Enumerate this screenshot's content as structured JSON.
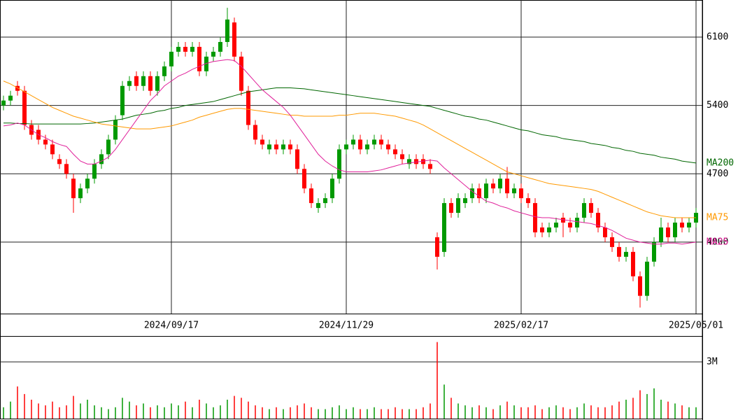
{
  "chart_data": {
    "type": "candlestick",
    "categories": [
      null,
      null,
      null,
      null,
      null,
      null,
      null,
      null,
      null,
      null,
      null,
      null,
      null,
      null,
      null,
      null,
      null,
      null,
      null,
      null,
      null,
      null,
      null,
      null,
      "2024/09/17",
      null,
      null,
      null,
      null,
      null,
      null,
      null,
      null,
      null,
      null,
      null,
      null,
      null,
      null,
      null,
      null,
      null,
      null,
      null,
      null,
      null,
      null,
      null,
      null,
      "2024/11/29",
      null,
      null,
      null,
      null,
      null,
      null,
      null,
      null,
      null,
      null,
      null,
      null,
      null,
      null,
      null,
      null,
      null,
      null,
      null,
      null,
      null,
      null,
      null,
      null,
      "2025/02/17",
      null,
      null,
      null,
      null,
      null,
      null,
      null,
      null,
      null,
      null,
      null,
      null,
      null,
      null,
      null,
      null,
      null,
      null,
      null,
      null,
      null,
      null,
      null,
      null,
      "2025/05/01"
    ],
    "open": [
      5400,
      5450,
      5600,
      5550,
      5200,
      5150,
      5050,
      5000,
      4850,
      4800,
      4650,
      4450,
      4550,
      4650,
      4800,
      4900,
      5050,
      5300,
      5600,
      5700,
      5600,
      5700,
      5550,
      5700,
      5800,
      5950,
      6000,
      5950,
      6000,
      5750,
      5900,
      5950,
      6050,
      6250,
      5900,
      5550,
      5200,
      5050,
      4950,
      5000,
      4950,
      5000,
      4950,
      4750,
      4550,
      4350,
      4400,
      4450,
      4650,
      4950,
      5000,
      5050,
      4950,
      5000,
      5050,
      5000,
      4950,
      4900,
      4800,
      4850,
      4850,
      4800,
      4050,
      3900,
      4400,
      4300,
      4400,
      4450,
      4550,
      4450,
      4600,
      4550,
      4650,
      4500,
      4550,
      4450,
      4400,
      4150,
      4100,
      4150,
      4250,
      4200,
      4150,
      4250,
      4400,
      4300,
      4150,
      4050,
      3950,
      3850,
      3900,
      3650,
      3450,
      3800,
      4000,
      4150,
      4050,
      4200,
      4150,
      4200
    ],
    "high": [
      5500,
      5550,
      5650,
      5600,
      5250,
      5200,
      5100,
      5050,
      4900,
      4850,
      4700,
      4600,
      4700,
      4850,
      4950,
      5100,
      5300,
      5650,
      5700,
      5750,
      5750,
      5750,
      5750,
      5850,
      6000,
      6050,
      6050,
      6050,
      6050,
      5950,
      6000,
      6100,
      6400,
      6300,
      5950,
      5600,
      5250,
      5100,
      5050,
      5050,
      5050,
      5050,
      5000,
      4800,
      4600,
      4450,
      4500,
      4700,
      5000,
      5050,
      5100,
      5100,
      5050,
      5100,
      5100,
      5050,
      5000,
      4950,
      4900,
      4900,
      4900,
      4850,
      4100,
      4450,
      4450,
      4500,
      4500,
      4600,
      4600,
      4650,
      4650,
      4700,
      4770,
      4600,
      4600,
      4500,
      4450,
      4200,
      4200,
      4250,
      4300,
      4250,
      4300,
      4450,
      4450,
      4350,
      4200,
      4100,
      4000,
      3950,
      3950,
      3700,
      3850,
      4050,
      4250,
      4200,
      4250,
      4250,
      4250,
      4350
    ],
    "low": [
      5350,
      5400,
      5500,
      5150,
      5050,
      5000,
      4950,
      4850,
      4750,
      4650,
      4300,
      4400,
      4500,
      4600,
      4750,
      4850,
      5000,
      5250,
      5550,
      5550,
      5550,
      5500,
      5500,
      5650,
      5750,
      5900,
      5900,
      5900,
      5700,
      5700,
      5850,
      5900,
      6000,
      5850,
      5500,
      5150,
      5000,
      4950,
      4900,
      4900,
      4900,
      4900,
      4700,
      4500,
      4350,
      4300,
      4350,
      4400,
      4600,
      4900,
      4950,
      4900,
      4900,
      4950,
      4950,
      4900,
      4850,
      4800,
      4750,
      4750,
      4750,
      4700,
      3720,
      3850,
      4250,
      4250,
      4350,
      4400,
      4400,
      4400,
      4500,
      4500,
      4450,
      4450,
      4400,
      4350,
      4050,
      4050,
      4050,
      4100,
      4050,
      4100,
      4100,
      4200,
      4250,
      4100,
      4000,
      3900,
      3800,
      3800,
      3600,
      3330,
      3400,
      3750,
      3950,
      4000,
      4000,
      4100,
      4100,
      4150
    ],
    "close": [
      5450,
      5500,
      5550,
      5200,
      5100,
      5050,
      5000,
      4900,
      4800,
      4700,
      4450,
      4550,
      4650,
      4800,
      4900,
      5050,
      5250,
      5600,
      5650,
      5600,
      5700,
      5550,
      5700,
      5800,
      5950,
      6000,
      5950,
      6000,
      5750,
      5900,
      5950,
      6050,
      6280,
      5900,
      5550,
      5200,
      5050,
      5000,
      5000,
      4950,
      5000,
      4950,
      4750,
      4550,
      4400,
      4400,
      4450,
      4650,
      4950,
      5000,
      5050,
      4950,
      5000,
      5050,
      5000,
      4950,
      4900,
      4850,
      4850,
      4800,
      4800,
      4750,
      3850,
      4400,
      4300,
      4450,
      4450,
      4550,
      4450,
      4600,
      4550,
      4650,
      4500,
      4550,
      4450,
      4400,
      4100,
      4100,
      4150,
      4200,
      4200,
      4150,
      4250,
      4400,
      4300,
      4150,
      4050,
      3950,
      3850,
      3900,
      3650,
      3450,
      3800,
      4000,
      4150,
      4050,
      4200,
      4150,
      4200,
      4300
    ],
    "up_color": "#009900",
    "down_color": "#ff0000",
    "series": [
      {
        "name": "MA200",
        "color": "#006600",
        "values": [
          5220,
          5220,
          5215,
          5215,
          5210,
          5210,
          5210,
          5210,
          5210,
          5210,
          5210,
          5210,
          5215,
          5220,
          5230,
          5240,
          5250,
          5260,
          5280,
          5300,
          5310,
          5320,
          5340,
          5350,
          5370,
          5380,
          5400,
          5410,
          5420,
          5430,
          5440,
          5460,
          5480,
          5500,
          5520,
          5540,
          5550,
          5560,
          5570,
          5580,
          5580,
          5580,
          5575,
          5570,
          5560,
          5550,
          5540,
          5530,
          5520,
          5510,
          5500,
          5490,
          5480,
          5470,
          5460,
          5450,
          5440,
          5430,
          5420,
          5410,
          5400,
          5390,
          5370,
          5350,
          5330,
          5310,
          5290,
          5280,
          5260,
          5250,
          5230,
          5210,
          5190,
          5170,
          5150,
          5140,
          5120,
          5100,
          5090,
          5080,
          5060,
          5050,
          5040,
          5030,
          5010,
          5000,
          4990,
          4970,
          4960,
          4940,
          4930,
          4910,
          4900,
          4890,
          4870,
          4860,
          4850,
          4830,
          4820,
          4810
        ]
      },
      {
        "name": "MA75",
        "color": "#ff9900",
        "values": [
          5650,
          5620,
          5580,
          5540,
          5500,
          5460,
          5420,
          5380,
          5350,
          5320,
          5290,
          5270,
          5250,
          5230,
          5210,
          5200,
          5190,
          5180,
          5170,
          5160,
          5160,
          5160,
          5170,
          5180,
          5190,
          5210,
          5230,
          5250,
          5280,
          5300,
          5320,
          5340,
          5360,
          5370,
          5370,
          5360,
          5350,
          5340,
          5330,
          5320,
          5310,
          5300,
          5300,
          5290,
          5290,
          5290,
          5290,
          5290,
          5300,
          5300,
          5310,
          5320,
          5320,
          5320,
          5310,
          5300,
          5290,
          5270,
          5250,
          5230,
          5200,
          5160,
          5120,
          5080,
          5040,
          5000,
          4960,
          4920,
          4880,
          4840,
          4800,
          4760,
          4720,
          4700,
          4680,
          4660,
          4640,
          4620,
          4600,
          4590,
          4580,
          4570,
          4560,
          4550,
          4540,
          4520,
          4490,
          4460,
          4430,
          4400,
          4370,
          4340,
          4310,
          4290,
          4270,
          4260,
          4250,
          4250,
          4250,
          4250
        ]
      },
      {
        "name": "MA25",
        "color": "#e0209a",
        "values": [
          5190,
          5200,
          5220,
          5200,
          5150,
          5100,
          5070,
          5030,
          5000,
          4980,
          4900,
          4830,
          4800,
          4800,
          4830,
          4870,
          4950,
          5050,
          5150,
          5250,
          5350,
          5450,
          5520,
          5600,
          5650,
          5700,
          5730,
          5770,
          5800,
          5830,
          5850,
          5860,
          5870,
          5860,
          5800,
          5720,
          5640,
          5560,
          5500,
          5440,
          5380,
          5300,
          5200,
          5100,
          5000,
          4900,
          4830,
          4780,
          4740,
          4720,
          4720,
          4720,
          4720,
          4730,
          4740,
          4760,
          4780,
          4800,
          4810,
          4820,
          4830,
          4840,
          4830,
          4760,
          4700,
          4640,
          4580,
          4520,
          4470,
          4420,
          4400,
          4370,
          4350,
          4320,
          4300,
          4280,
          4260,
          4250,
          4250,
          4240,
          4230,
          4220,
          4210,
          4200,
          4190,
          4170,
          4150,
          4120,
          4080,
          4040,
          4020,
          4000,
          3990,
          3980,
          3980,
          3990,
          3990,
          3980,
          3990,
          4000
        ]
      }
    ],
    "ylim": [
      3268,
      6480
    ],
    "yticks": [
      4000,
      4700,
      5400,
      6100
    ],
    "grid": true,
    "volume": {
      "values": [
        600000,
        900000,
        1700000,
        1300000,
        1000000,
        800000,
        700000,
        900000,
        600000,
        700000,
        1200000,
        800000,
        1000000,
        700000,
        600000,
        500000,
        600000,
        1100000,
        900000,
        700000,
        800000,
        600000,
        700000,
        600000,
        800000,
        700000,
        900000,
        600000,
        1000000,
        800000,
        600000,
        700000,
        1000000,
        1200000,
        1100000,
        900000,
        700000,
        600000,
        500000,
        600000,
        500000,
        600000,
        700000,
        800000,
        600000,
        500000,
        500000,
        600000,
        700000,
        500000,
        600000,
        500000,
        500000,
        600000,
        500000,
        500000,
        600000,
        500000,
        500000,
        500000,
        600000,
        800000,
        4050000,
        1800000,
        1100000,
        800000,
        700000,
        600000,
        700000,
        600000,
        500000,
        700000,
        900000,
        700000,
        600000,
        600000,
        700000,
        500000,
        600000,
        700000,
        600000,
        500000,
        600000,
        800000,
        700000,
        600000,
        600000,
        700000,
        900000,
        1000000,
        1100000,
        1500000,
        1300000,
        1600000,
        1000000,
        900000,
        800000,
        700000,
        600000,
        600000
      ],
      "ylim": [
        0,
        4370000
      ],
      "yticks": [
        {
          "value": 3000000,
          "label": "3M"
        }
      ]
    }
  }
}
